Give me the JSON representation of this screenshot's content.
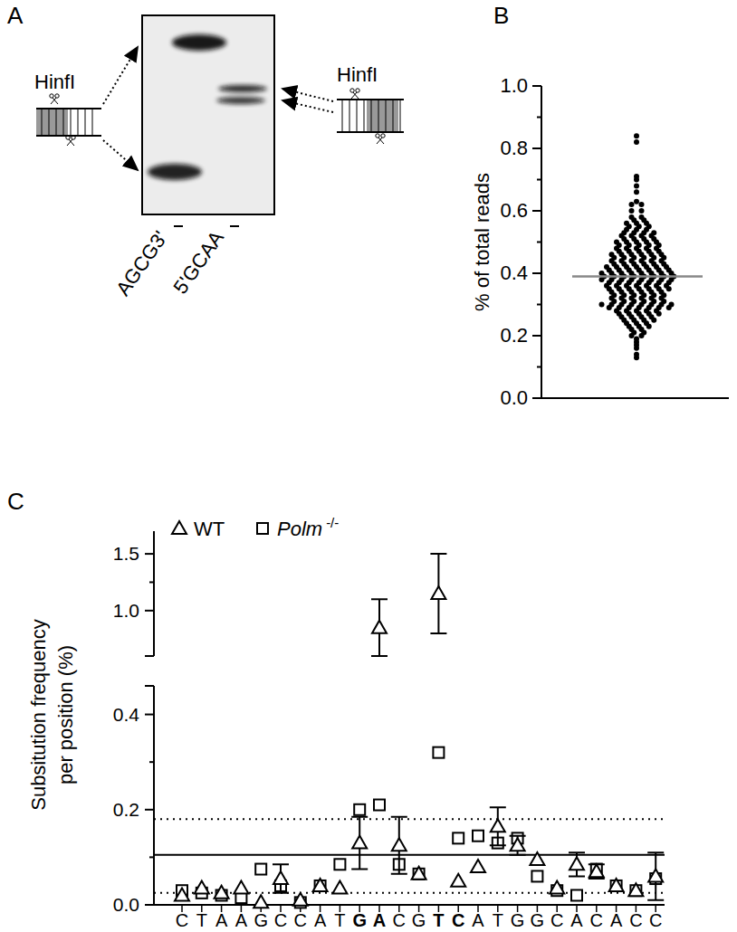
{
  "gel": {
    "panel": "A",
    "enzyme_labels": [
      "HinfI",
      "HinfI"
    ],
    "lane_labels": [
      "AGCG3'",
      "5'GCAA"
    ]
  },
  "chart_data": [
    {
      "panel": "B",
      "type": "scatter",
      "ylabel": "% of total reads",
      "marker": "circle",
      "color": "#000000",
      "tick_labels": "y",
      "ylim": [
        0,
        1
      ],
      "yticks": [
        {
          "value": 0,
          "label": "0.0"
        },
        0.2,
        0.4,
        0.6,
        0.8,
        {
          "value": 1,
          "label": "1.0"
        }
      ],
      "median": 0.39,
      "values": [
        0.84,
        0.82,
        0.71,
        0.7,
        0.68,
        0.66,
        0.63,
        0.62,
        0.62,
        0.6,
        0.6,
        0.58,
        0.58,
        0.57,
        0.57,
        0.56,
        0.56,
        0.56,
        0.55,
        0.55,
        0.55,
        0.54,
        0.54,
        0.54,
        0.53,
        0.53,
        0.53,
        0.53,
        0.52,
        0.52,
        0.52,
        0.52,
        0.51,
        0.51,
        0.51,
        0.51,
        0.5,
        0.5,
        0.5,
        0.5,
        0.5,
        0.49,
        0.49,
        0.49,
        0.49,
        0.49,
        0.48,
        0.48,
        0.48,
        0.48,
        0.48,
        0.47,
        0.47,
        0.47,
        0.47,
        0.47,
        0.46,
        0.46,
        0.46,
        0.46,
        0.46,
        0.46,
        0.45,
        0.45,
        0.45,
        0.45,
        0.45,
        0.45,
        0.44,
        0.44,
        0.44,
        0.44,
        0.44,
        0.44,
        0.43,
        0.43,
        0.43,
        0.43,
        0.43,
        0.43,
        0.42,
        0.42,
        0.42,
        0.42,
        0.42,
        0.42,
        0.42,
        0.41,
        0.41,
        0.41,
        0.41,
        0.41,
        0.41,
        0.41,
        0.4,
        0.4,
        0.4,
        0.4,
        0.4,
        0.4,
        0.4,
        0.4,
        0.39,
        0.39,
        0.39,
        0.39,
        0.39,
        0.39,
        0.39,
        0.39,
        0.38,
        0.38,
        0.38,
        0.38,
        0.38,
        0.38,
        0.38,
        0.38,
        0.37,
        0.37,
        0.37,
        0.37,
        0.37,
        0.37,
        0.37,
        0.36,
        0.36,
        0.36,
        0.36,
        0.36,
        0.36,
        0.36,
        0.35,
        0.35,
        0.35,
        0.35,
        0.35,
        0.35,
        0.35,
        0.34,
        0.34,
        0.34,
        0.34,
        0.34,
        0.34,
        0.33,
        0.33,
        0.33,
        0.33,
        0.33,
        0.33,
        0.32,
        0.32,
        0.32,
        0.32,
        0.32,
        0.32,
        0.31,
        0.31,
        0.31,
        0.31,
        0.31,
        0.31,
        0.3,
        0.3,
        0.3,
        0.3,
        0.3,
        0.3,
        0.3,
        0.3,
        0.29,
        0.29,
        0.29,
        0.29,
        0.29,
        0.29,
        0.29,
        0.28,
        0.28,
        0.28,
        0.28,
        0.28,
        0.27,
        0.27,
        0.27,
        0.27,
        0.27,
        0.26,
        0.26,
        0.26,
        0.26,
        0.25,
        0.25,
        0.25,
        0.25,
        0.24,
        0.24,
        0.24,
        0.23,
        0.23,
        0.23,
        0.22,
        0.22,
        0.21,
        0.21,
        0.2,
        0.2,
        0.19,
        0.18,
        0.17,
        0.16,
        0.14,
        0.13
      ]
    },
    {
      "panel": "C",
      "type": "scatter",
      "ylabel": [
        "Subsitution frequency",
        "per position (%)"
      ],
      "categories": [
        "C",
        "T",
        "A",
        "A",
        "G",
        "C",
        "C",
        "A",
        "T",
        "G",
        "A",
        "C",
        "G",
        "T",
        "C",
        "A",
        "T",
        "G",
        "G",
        "C",
        "A",
        "C",
        "A",
        "C",
        "C"
      ],
      "ylim": [
        0,
        1.7
      ],
      "y_break": [
        0.46,
        0.6
      ],
      "yticks": [
        {
          "value": 0,
          "label": "0.0"
        },
        0.2,
        0.4,
        {
          "value": 1,
          "label": "1.0"
        },
        1.5
      ],
      "hlines": [
        {
          "value": 0.105,
          "line_style": "solid"
        },
        {
          "value": 0.18,
          "line_style": "dotted"
        },
        {
          "value": 0.025,
          "line_style": "dotted"
        }
      ],
      "legend": "top",
      "series": [
        {
          "name": "WT",
          "color": "#000000",
          "marker": "triangle",
          "values": [
            0.02,
            0.035,
            0.025,
            0.035,
            0.005,
            0.055,
            0.01,
            0.04,
            0.035,
            0.13,
            0.85,
            0.125,
            0.065,
            1.15,
            0.05,
            0.08,
            0.165,
            0.125,
            0.095,
            0.035,
            0.085,
            0.07,
            0.04,
            0.03,
            0.06
          ],
          "errors": [
            null,
            null,
            null,
            null,
            null,
            0.03,
            null,
            null,
            null,
            0.055,
            0.25,
            0.06,
            null,
            0.35,
            null,
            null,
            0.04,
            0.02,
            null,
            null,
            0.025,
            0.015,
            null,
            null,
            0.05
          ]
        },
        {
          "name": "Polm -/-",
          "color": "#000000",
          "marker": "square",
          "values": [
            0.03,
            0.025,
            0.02,
            0.015,
            0.075,
            0.04,
            0.005,
            0.04,
            0.085,
            0.2,
            0.21,
            0.085,
            0.065,
            0.32,
            0.14,
            0.145,
            0.13,
            0.14,
            0.06,
            0.03,
            0.02,
            0.075,
            0.04,
            0.03,
            0.055
          ]
        }
      ]
    }
  ]
}
